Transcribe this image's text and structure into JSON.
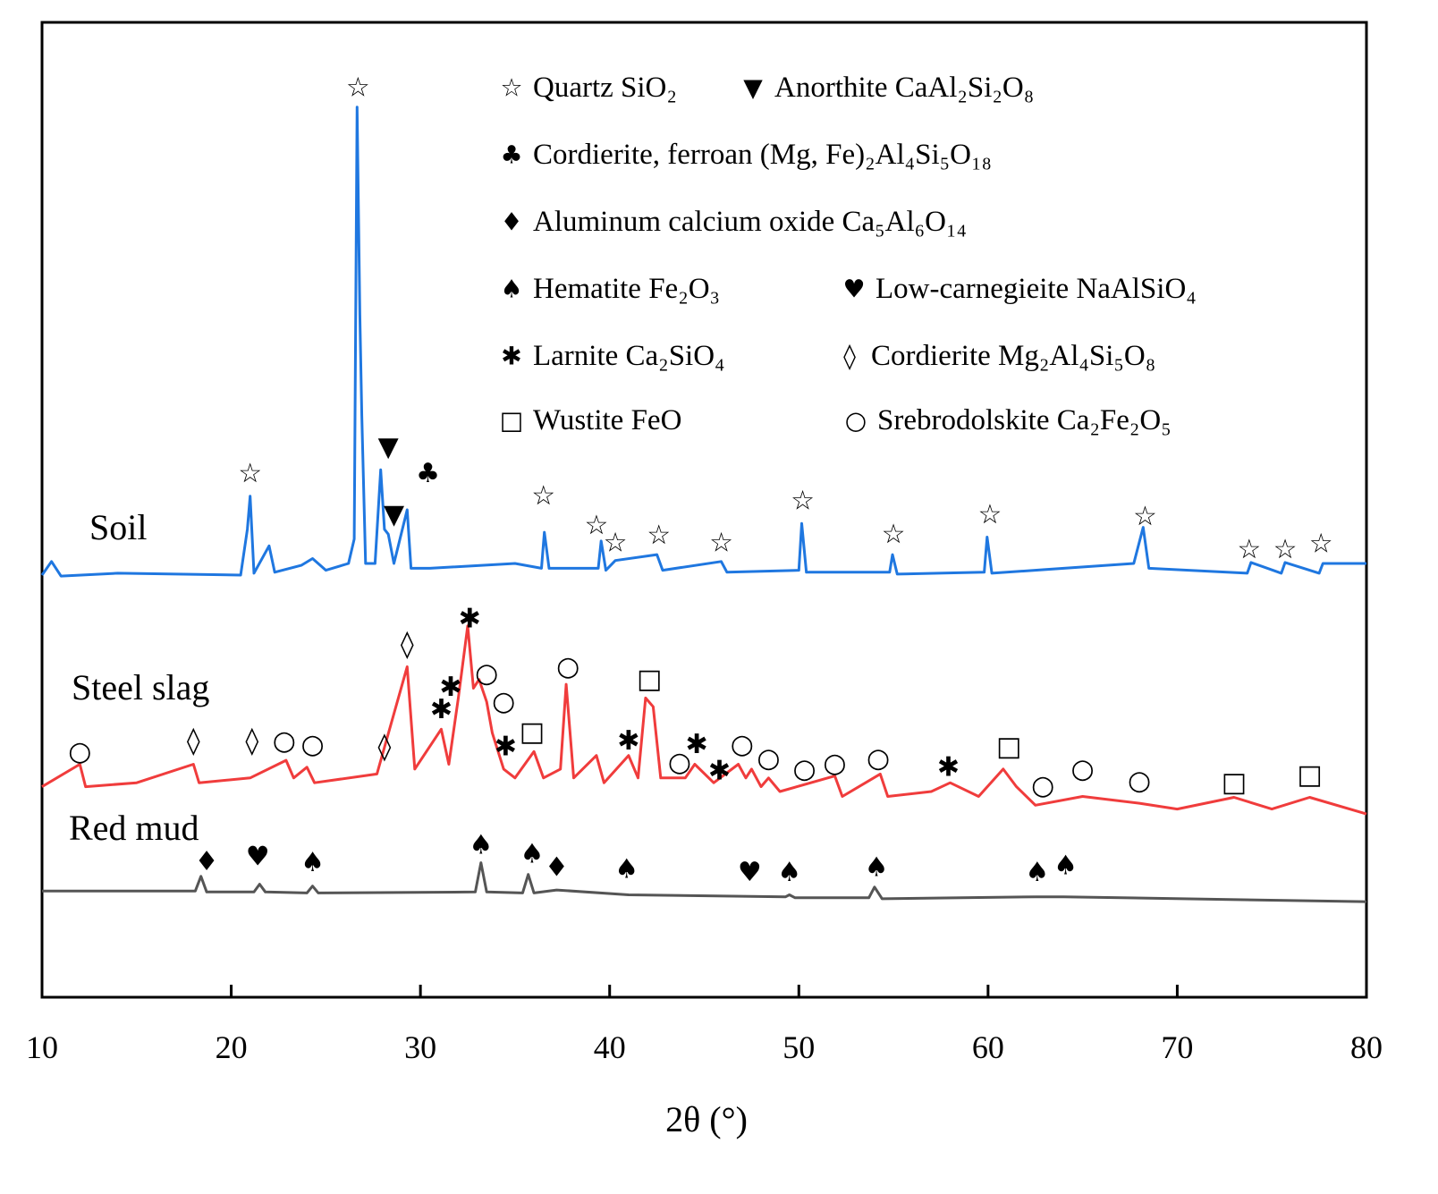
{
  "chart_data": {
    "type": "line",
    "xlabel": "2θ (°)",
    "xlim": [
      10,
      80
    ],
    "xticks": [
      10,
      20,
      30,
      40,
      50,
      60,
      70,
      80
    ],
    "ylim": [
      0,
      100
    ],
    "series": [
      {
        "name": "Soil",
        "color": "#1f77e0",
        "x": [
          10,
          10.5,
          11,
          14,
          20.5,
          20.85,
          21.0,
          21.2,
          22.0,
          22.3,
          23.7,
          24.3,
          25,
          26.2,
          26.5,
          26.65,
          26.8,
          26.9,
          27.1,
          27.6,
          27.9,
          28.1,
          28.3,
          28.6,
          29.3,
          29.5,
          30.5,
          35,
          36.4,
          36.55,
          36.8,
          39.4,
          39.55,
          39.8,
          40.3,
          42.5,
          42.8,
          45.9,
          46.2,
          50.0,
          50.15,
          50.4,
          54.8,
          54.95,
          55.2,
          59.8,
          59.95,
          60.2,
          67.7,
          68.2,
          68.5,
          73.7,
          73.9,
          75.5,
          75.7,
          77.5,
          77.7,
          80
        ],
        "values": [
          43.3,
          44.7,
          43.2,
          43.5,
          43.3,
          48,
          51.4,
          43.5,
          46.3,
          43.6,
          44.3,
          45,
          43.8,
          44.5,
          47,
          91.3,
          70,
          59.6,
          44.5,
          44.5,
          54.1,
          48,
          47.5,
          44.5,
          50,
          44,
          44,
          44.5,
          44,
          47.7,
          44,
          44,
          46.8,
          43.8,
          44.8,
          45.4,
          43.8,
          44.7,
          43.6,
          43.8,
          48.6,
          43.6,
          43.6,
          45.4,
          43.4,
          43.6,
          47.2,
          43.5,
          44.5,
          48.2,
          44,
          43.5,
          44.6,
          43.5,
          44.6,
          43.5,
          44.5,
          44.5
        ],
        "markers": [
          {
            "symbol": "☆",
            "x": 21,
            "y": 53.7
          },
          {
            "symbol": "☆",
            "x": 26.7,
            "y": 93.3
          },
          {
            "symbol": "▼",
            "x": 28.3,
            "y": 56.4
          },
          {
            "symbol": "▼",
            "x": 28.6,
            "y": 49.5
          },
          {
            "symbol": "♣",
            "x": 30.4,
            "y": 53.7
          },
          {
            "symbol": "☆",
            "x": 36.5,
            "y": 51.4
          },
          {
            "symbol": "☆",
            "x": 39.3,
            "y": 48.4
          },
          {
            "symbol": "☆",
            "x": 40.3,
            "y": 46.6
          },
          {
            "symbol": "☆",
            "x": 42.6,
            "y": 47.4
          },
          {
            "symbol": "☆",
            "x": 45.9,
            "y": 46.6
          },
          {
            "symbol": "☆",
            "x": 50.2,
            "y": 50.9
          },
          {
            "symbol": "☆",
            "x": 55,
            "y": 47.5
          },
          {
            "symbol": "☆",
            "x": 60.1,
            "y": 49.5
          },
          {
            "symbol": "☆",
            "x": 68.3,
            "y": 49.3
          },
          {
            "symbol": "☆",
            "x": 73.8,
            "y": 45.9
          },
          {
            "symbol": "☆",
            "x": 75.7,
            "y": 45.9
          },
          {
            "symbol": "☆",
            "x": 77.6,
            "y": 46.5
          }
        ]
      },
      {
        "name": "Steel slag",
        "color": "#f03c3c",
        "x": [
          10,
          12,
          12.3,
          15,
          18,
          18.3,
          21,
          22.9,
          23.3,
          24,
          24.4,
          27.7,
          29.3,
          29.7,
          31.1,
          31.5,
          32.0,
          32.5,
          32.8,
          33.1,
          33.5,
          33.8,
          34.4,
          35,
          36,
          36.5,
          37.4,
          37.7,
          38.1,
          39.3,
          39.7,
          41.0,
          41.5,
          41.9,
          42.3,
          42.7,
          44,
          44.5,
          45.5,
          46.8,
          47.2,
          47.5,
          48,
          48.4,
          49,
          51.9,
          52.3,
          54.3,
          54.7,
          57,
          58,
          59.5,
          60.8,
          61.5,
          62.5,
          65,
          68,
          70,
          73,
          75,
          77,
          80
        ],
        "values": [
          21.6,
          23.9,
          21.6,
          22.0,
          23.9,
          22.0,
          22.5,
          24.3,
          22.5,
          23.6,
          22.0,
          22.9,
          33.9,
          23.4,
          27.5,
          23.9,
          30.7,
          38.1,
          31.7,
          32.6,
          30.3,
          27.1,
          23.4,
          22.5,
          25.2,
          22.5,
          23.4,
          32.1,
          22.5,
          24.8,
          22.0,
          24.8,
          22.5,
          30.7,
          29.8,
          22.5,
          22.5,
          23.9,
          22.0,
          23.9,
          22.5,
          23.4,
          21.6,
          22.5,
          21.1,
          22.7,
          20.6,
          22.9,
          20.6,
          21.1,
          22.0,
          20.6,
          23.4,
          21.6,
          19.7,
          20.6,
          19.9,
          19.3,
          20.5,
          19.3,
          20.5,
          18.8
        ],
        "markers": [
          {
            "symbol": "○",
            "x": 12,
            "y": 25.2
          },
          {
            "symbol": "◊",
            "x": 18,
            "y": 26.3
          },
          {
            "symbol": "◊",
            "x": 21.1,
            "y": 26.3
          },
          {
            "symbol": "○",
            "x": 22.8,
            "y": 26.3
          },
          {
            "symbol": "○",
            "x": 24.3,
            "y": 25.9
          },
          {
            "symbol": "◊",
            "x": 28.1,
            "y": 25.7
          },
          {
            "symbol": "◊",
            "x": 29.3,
            "y": 36.2
          },
          {
            "symbol": "✱",
            "x": 31.1,
            "y": 29.5
          },
          {
            "symbol": "✱",
            "x": 31.6,
            "y": 31.8
          },
          {
            "symbol": "✱",
            "x": 32.6,
            "y": 38.8
          },
          {
            "symbol": "○",
            "x": 33.5,
            "y": 33.2
          },
          {
            "symbol": "○",
            "x": 34.4,
            "y": 30.3
          },
          {
            "symbol": "✱",
            "x": 34.5,
            "y": 25.7
          },
          {
            "symbol": "□",
            "x": 35.9,
            "y": 27.2
          },
          {
            "symbol": "○",
            "x": 37.8,
            "y": 33.9
          },
          {
            "symbol": "✱",
            "x": 41,
            "y": 26.3
          },
          {
            "symbol": "□",
            "x": 42.1,
            "y": 32.6
          },
          {
            "symbol": "○",
            "x": 43.7,
            "y": 24.1
          },
          {
            "symbol": "✱",
            "x": 44.6,
            "y": 25.9
          },
          {
            "symbol": "✱",
            "x": 45.8,
            "y": 23.2
          },
          {
            "symbol": "○",
            "x": 47,
            "y": 25.9
          },
          {
            "symbol": "○",
            "x": 48.4,
            "y": 24.5
          },
          {
            "symbol": "○",
            "x": 50.3,
            "y": 23.4
          },
          {
            "symbol": "○",
            "x": 51.9,
            "y": 24.0
          },
          {
            "symbol": "○",
            "x": 54.2,
            "y": 24.5
          },
          {
            "symbol": "✱",
            "x": 57.9,
            "y": 23.6
          },
          {
            "symbol": "□",
            "x": 61.1,
            "y": 25.7
          },
          {
            "symbol": "○",
            "x": 62.9,
            "y": 21.7
          },
          {
            "symbol": "○",
            "x": 65,
            "y": 23.4
          },
          {
            "symbol": "○",
            "x": 68,
            "y": 22.2
          },
          {
            "symbol": "□",
            "x": 73,
            "y": 22.0
          },
          {
            "symbol": "□",
            "x": 77,
            "y": 22.8
          }
        ]
      },
      {
        "name": "Red mud",
        "color": "#555555",
        "x": [
          10,
          18.1,
          18.4,
          18.7,
          21.2,
          21.5,
          21.8,
          24.0,
          24.3,
          24.6,
          32.9,
          33.2,
          33.5,
          35.4,
          35.7,
          36.0,
          37.2,
          41,
          49.3,
          49.5,
          49.8,
          53.7,
          54,
          54.4,
          62.5,
          64,
          80
        ],
        "values": [
          10.9,
          10.9,
          12.4,
          10.8,
          10.8,
          11.6,
          10.8,
          10.7,
          11.4,
          10.7,
          10.8,
          13.8,
          10.8,
          10.7,
          12.6,
          10.7,
          11.0,
          10.5,
          10.3,
          10.5,
          10.2,
          10.2,
          11.3,
          10.1,
          10.3,
          10.3,
          9.8
        ],
        "markers": [
          {
            "symbol": "♦",
            "x": 18.7,
            "y": 13.9
          },
          {
            "symbol": "♥",
            "x": 21.4,
            "y": 14.4
          },
          {
            "symbol": "♠",
            "x": 24.3,
            "y": 13.8
          },
          {
            "symbol": "♠",
            "x": 33.2,
            "y": 15.6
          },
          {
            "symbol": "♠",
            "x": 35.9,
            "y": 14.7
          },
          {
            "symbol": "♦",
            "x": 37.2,
            "y": 13.3
          },
          {
            "symbol": "♠",
            "x": 40.9,
            "y": 13.1
          },
          {
            "symbol": "♥",
            "x": 47.4,
            "y": 12.8
          },
          {
            "symbol": "♠",
            "x": 49.5,
            "y": 12.8
          },
          {
            "symbol": "♠",
            "x": 54.1,
            "y": 13.3
          },
          {
            "symbol": "♠",
            "x": 62.6,
            "y": 12.8
          },
          {
            "symbol": "♠",
            "x": 64.1,
            "y": 13.5
          }
        ]
      }
    ],
    "legend": [
      {
        "symbol": "☆",
        "text": "Quartz SiO₂"
      },
      {
        "symbol": "▼",
        "text": "Anorthite CaAl₂Si₂O₈"
      },
      {
        "symbol": "♣",
        "text": "Cordierite, ferroan (Mg, Fe)₂Al₄Si₅O₁₈"
      },
      {
        "symbol": "♦",
        "text": "Aluminum calcium oxide Ca₅Al₆O₁₄"
      },
      {
        "symbol": "♠",
        "text": "Hematite Fe₂O₃"
      },
      {
        "symbol": "♥",
        "text": "Low-carnegieite NaAlSiO₄"
      },
      {
        "symbol": "✱",
        "text": "Larnite Ca₂SiO₄"
      },
      {
        "symbol": "◊",
        "text": "Cordierite Mg₂Al₄Si₅O₈"
      },
      {
        "symbol": "□",
        "text": "Wustite FeO"
      },
      {
        "symbol": "○",
        "text": "Srebrodolskite Ca₂Fe₂O₅"
      }
    ]
  }
}
